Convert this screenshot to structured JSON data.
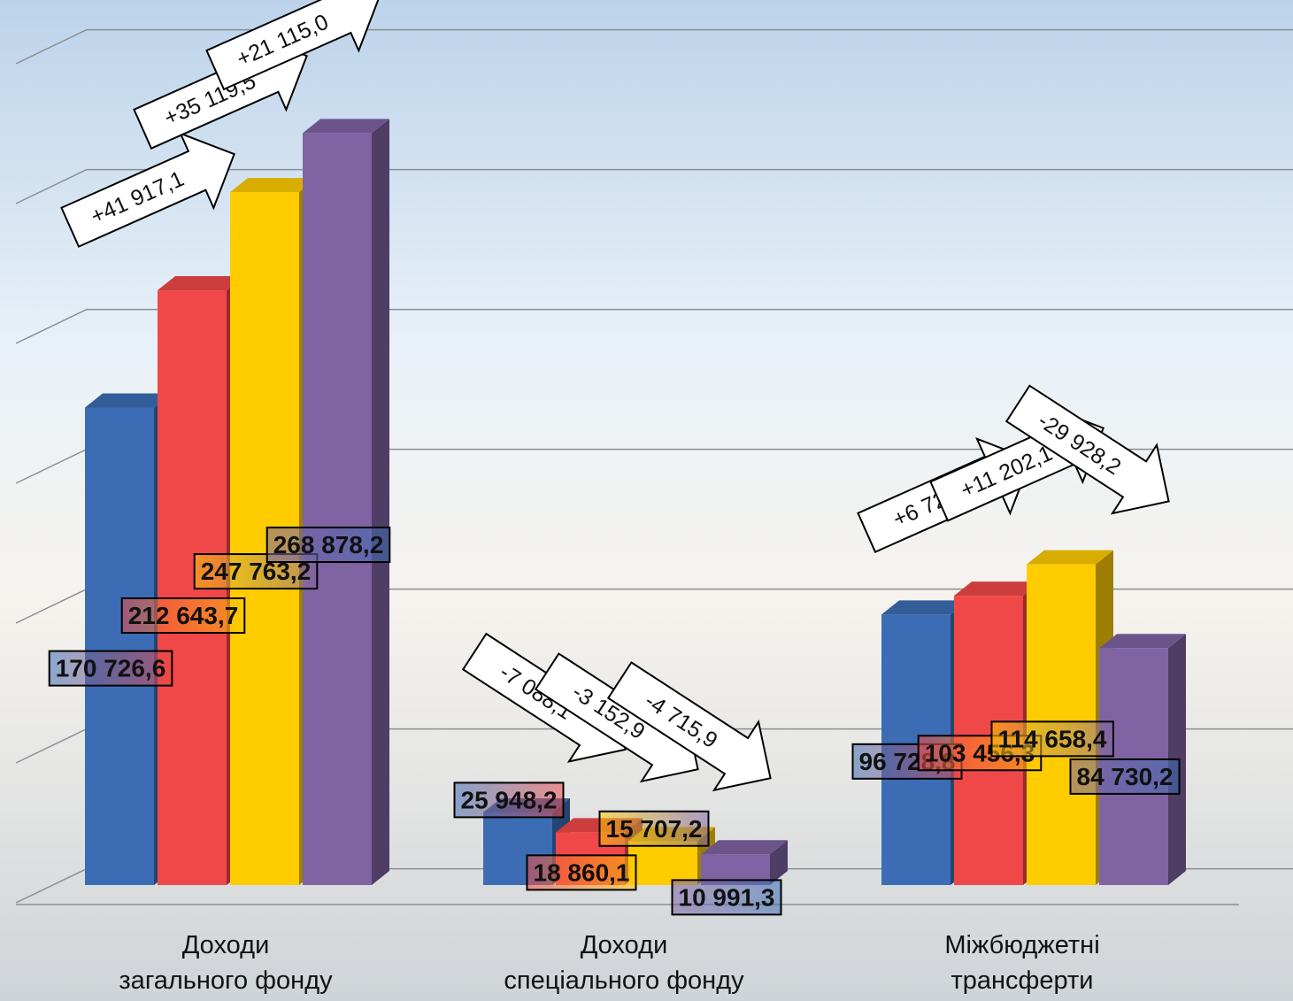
{
  "chart_data": {
    "type": "bar3d",
    "categories": [
      "Доходи\nзагального фонду",
      "Доходи\nспеціального фонду",
      "Міжбюджетні\nтрансферти"
    ],
    "series": [
      {
        "color": "#3c6db4",
        "values": [
          170726.6,
          25948.2,
          96728.8
        ],
        "value_labels": [
          "170 726,6",
          "25 948,2",
          "96 728,8"
        ]
      },
      {
        "color": "#f04848",
        "values": [
          212643.7,
          18860.1,
          103456.3
        ],
        "value_labels": [
          "212 643,7",
          "18 860,1",
          "103 456,3"
        ]
      },
      {
        "color": "#ffcc00",
        "values": [
          247763.2,
          15707.2,
          114658.4
        ],
        "value_labels": [
          "247 763,2",
          "15 707,2",
          "114 658,4"
        ]
      },
      {
        "color": "#7f63a3",
        "values": [
          268878.2,
          10991.3,
          84730.2
        ],
        "value_labels": [
          "268 878,2",
          "10 991,3",
          "84 730,2"
        ]
      }
    ],
    "changes": [
      [
        "+41 917,1",
        "+35 119,5",
        "+21 115,0"
      ],
      [
        "-7 088,1",
        "-3 152,9",
        "-4 715,9"
      ],
      [
        "+6 727,5",
        "+11 202,1",
        "-29 928,2"
      ]
    ],
    "ylim": [
      0,
      300000
    ],
    "yticks": [
      0,
      50000,
      100000,
      150000,
      200000,
      250000,
      300000
    ],
    "grid": true
  }
}
